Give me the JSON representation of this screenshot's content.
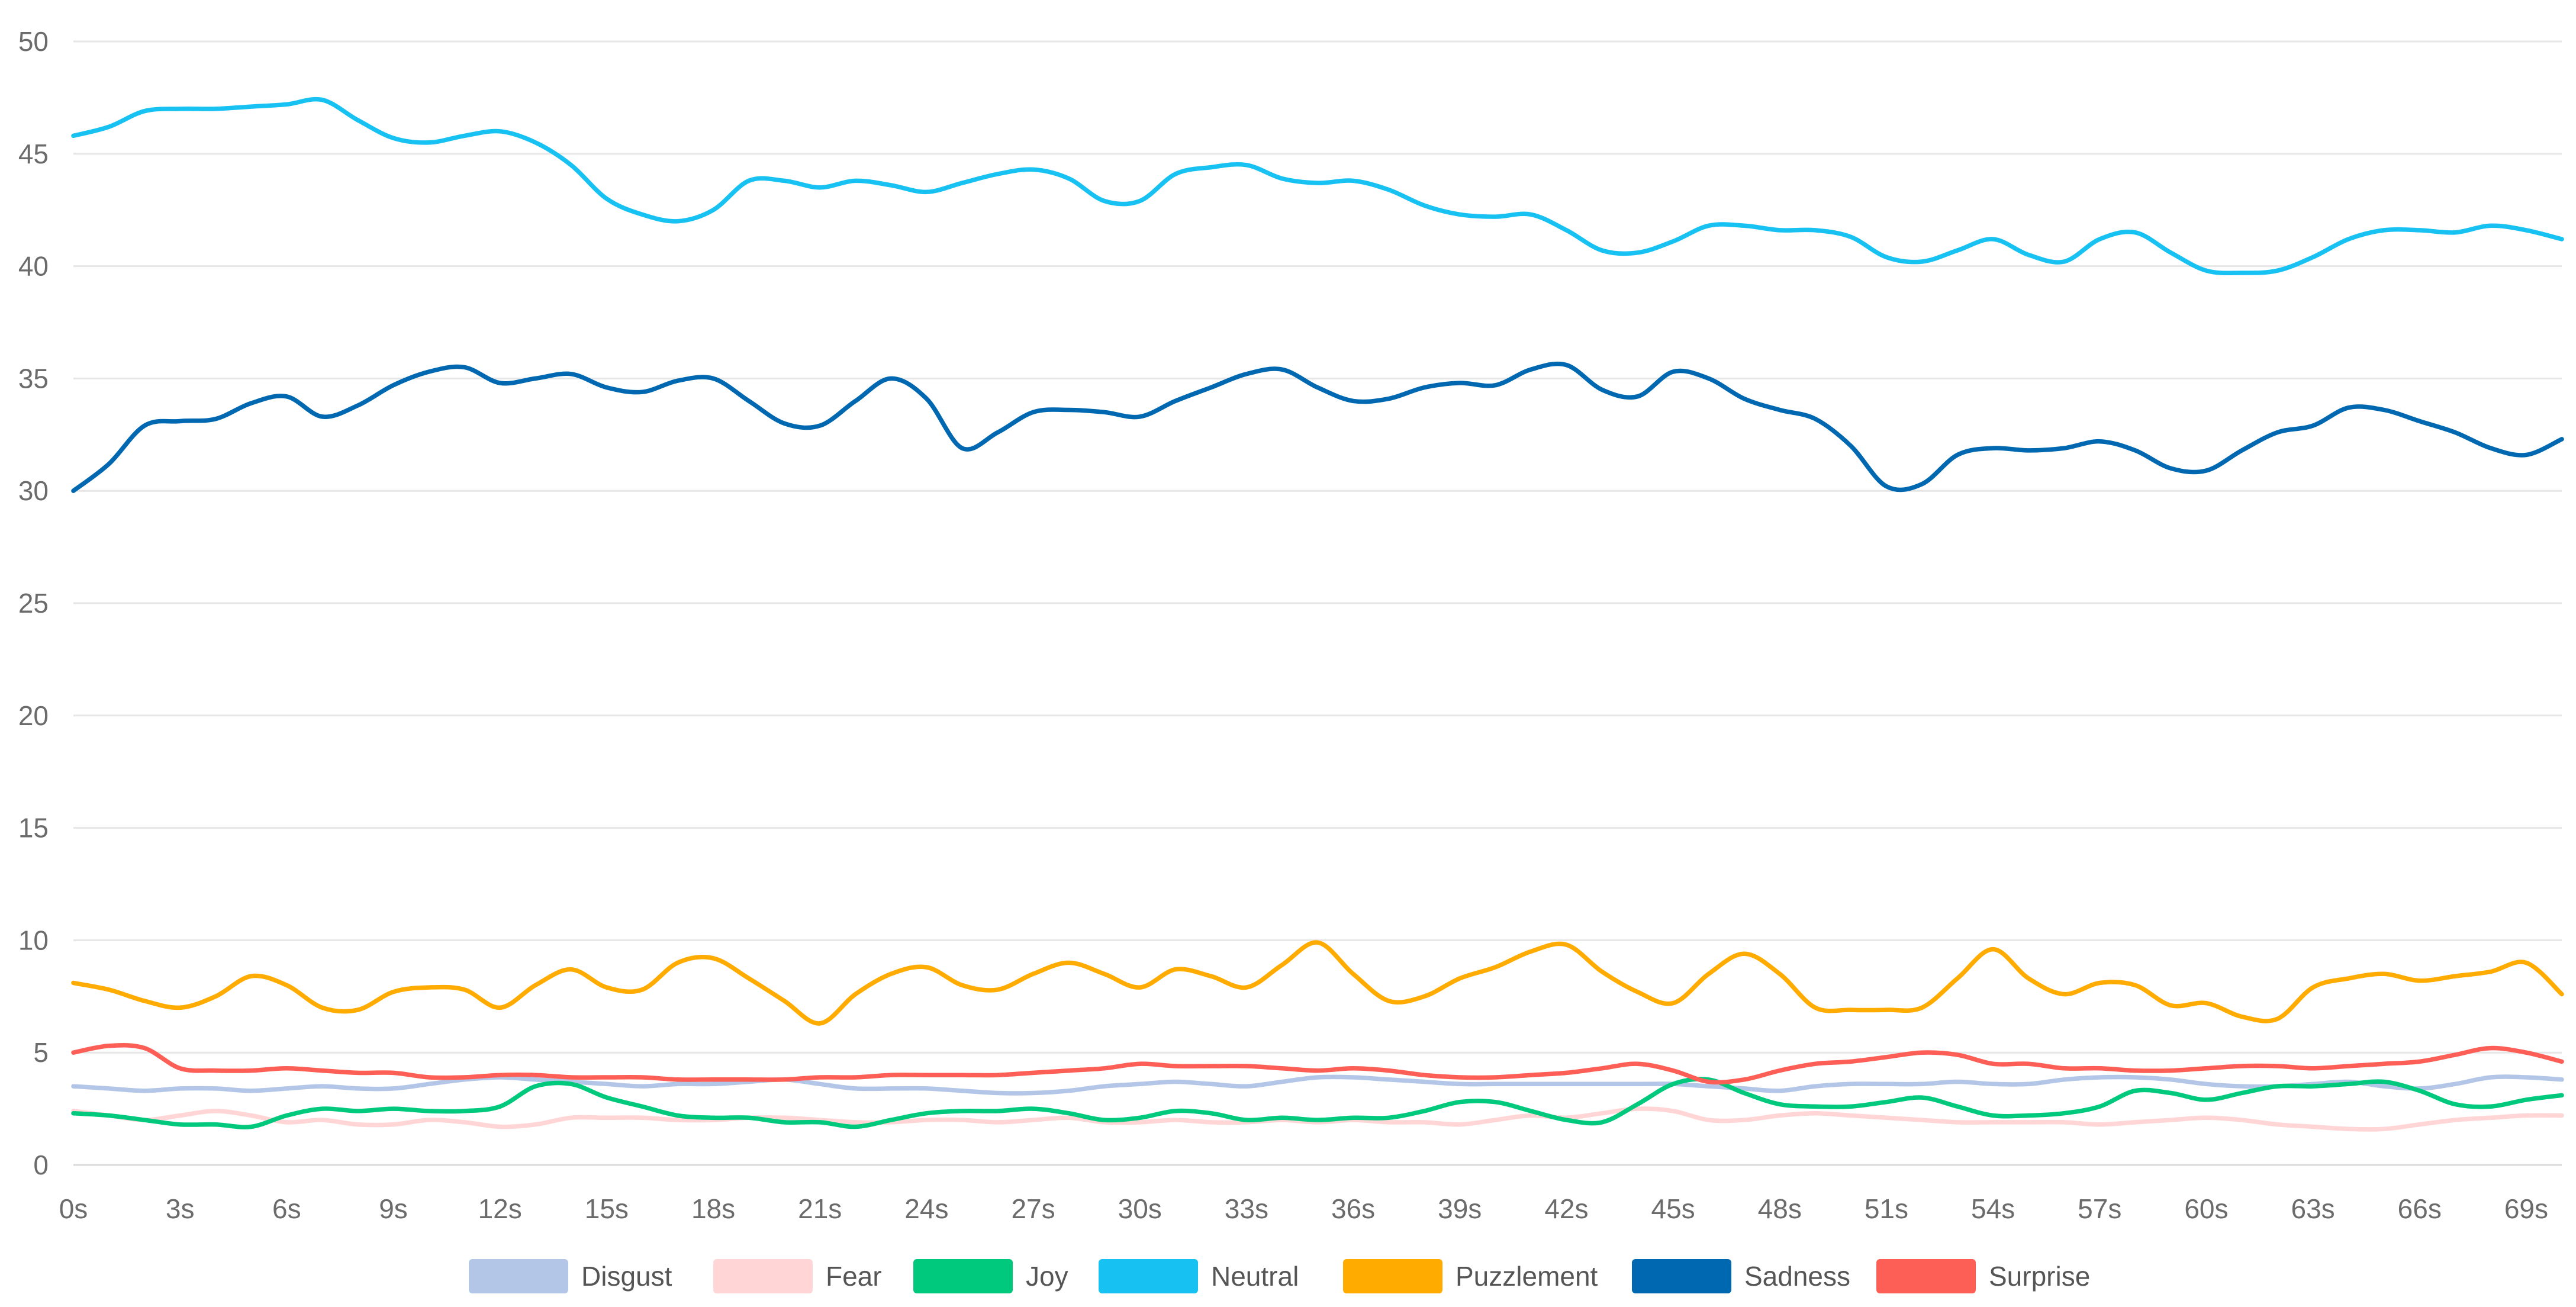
{
  "chart_data": {
    "type": "line",
    "title": "",
    "xlabel": "",
    "ylabel": "",
    "ylim": [
      0,
      50
    ],
    "yticks": [
      0,
      5,
      10,
      15,
      20,
      25,
      30,
      35,
      40,
      45,
      50
    ],
    "ytick_labels": [
      "0",
      "5",
      "10",
      "15",
      "20",
      "25",
      "30",
      "35",
      "40",
      "45",
      "50"
    ],
    "xlim": [
      0,
      70
    ],
    "xticks": [
      0,
      3,
      6,
      9,
      12,
      15,
      18,
      21,
      24,
      27,
      30,
      33,
      36,
      39,
      42,
      45,
      48,
      51,
      54,
      57,
      60,
      63,
      66,
      69
    ],
    "xtick_labels": [
      "0s",
      "3s",
      "6s",
      "9s",
      "12s",
      "15s",
      "18s",
      "21s",
      "24s",
      "27s",
      "30s",
      "33s",
      "36s",
      "39s",
      "42s",
      "45s",
      "48s",
      "51s",
      "54s",
      "57s",
      "60s",
      "63s",
      "66s",
      "69s"
    ],
    "grid": true,
    "legend_position": "bottom-center",
    "x": [
      0,
      1,
      2,
      3,
      4,
      5,
      6,
      7,
      8,
      9,
      10,
      11,
      12,
      13,
      14,
      15,
      16,
      17,
      18,
      19,
      20,
      21,
      22,
      23,
      24,
      25,
      26,
      27,
      28,
      29,
      30,
      31,
      32,
      33,
      34,
      35,
      36,
      37,
      38,
      39,
      40,
      41,
      42,
      43,
      44,
      45,
      46,
      47,
      48,
      49,
      50,
      51,
      52,
      53,
      54,
      55,
      56,
      57,
      58,
      59,
      60,
      61,
      62,
      63,
      64,
      65,
      66,
      67,
      68,
      69,
      70
    ],
    "series": [
      {
        "name": "Disgust",
        "color": "#b3c6e7",
        "values": [
          3.5,
          3.4,
          3.3,
          3.4,
          3.4,
          3.3,
          3.4,
          3.5,
          3.4,
          3.4,
          3.6,
          3.8,
          3.9,
          3.8,
          3.7,
          3.6,
          3.5,
          3.6,
          3.6,
          3.7,
          3.8,
          3.6,
          3.4,
          3.4,
          3.4,
          3.3,
          3.2,
          3.2,
          3.3,
          3.5,
          3.6,
          3.7,
          3.6,
          3.5,
          3.7,
          3.9,
          3.9,
          3.8,
          3.7,
          3.6,
          3.6,
          3.6,
          3.6,
          3.6,
          3.6,
          3.6,
          3.5,
          3.4,
          3.3,
          3.5,
          3.6,
          3.6,
          3.6,
          3.7,
          3.6,
          3.6,
          3.8,
          3.9,
          3.9,
          3.8,
          3.6,
          3.5,
          3.5,
          3.6,
          3.7,
          3.5,
          3.4,
          3.6,
          3.9,
          3.9,
          3.8
        ]
      },
      {
        "name": "Fear",
        "color": "#ffd5d5",
        "values": [
          2.4,
          2.2,
          2.0,
          2.2,
          2.4,
          2.2,
          1.9,
          2.0,
          1.8,
          1.8,
          2.0,
          1.9,
          1.7,
          1.8,
          2.1,
          2.1,
          2.1,
          2.0,
          2.0,
          2.1,
          2.1,
          2.0,
          1.9,
          1.9,
          2.0,
          2.0,
          1.9,
          2.0,
          2.1,
          1.9,
          1.9,
          2.0,
          1.9,
          1.9,
          2.0,
          1.9,
          2.0,
          1.9,
          1.9,
          1.8,
          2.0,
          2.2,
          2.1,
          2.3,
          2.5,
          2.4,
          2.0,
          2.0,
          2.2,
          2.3,
          2.2,
          2.1,
          2.0,
          1.9,
          1.9,
          1.9,
          1.9,
          1.8,
          1.9,
          2.0,
          2.1,
          2.0,
          1.8,
          1.7,
          1.6,
          1.6,
          1.8,
          2.0,
          2.1,
          2.2,
          2.2
        ]
      },
      {
        "name": "Joy",
        "color": "#00c97d",
        "values": [
          2.3,
          2.2,
          2.0,
          1.8,
          1.8,
          1.7,
          2.2,
          2.5,
          2.4,
          2.5,
          2.4,
          2.4,
          2.6,
          3.5,
          3.6,
          3.0,
          2.6,
          2.2,
          2.1,
          2.1,
          1.9,
          1.9,
          1.7,
          2.0,
          2.3,
          2.4,
          2.4,
          2.5,
          2.3,
          2.0,
          2.1,
          2.4,
          2.3,
          2.0,
          2.1,
          2.0,
          2.1,
          2.1,
          2.4,
          2.8,
          2.8,
          2.4,
          2.0,
          1.9,
          2.7,
          3.6,
          3.8,
          3.2,
          2.7,
          2.6,
          2.6,
          2.8,
          3.0,
          2.6,
          2.2,
          2.2,
          2.3,
          2.6,
          3.3,
          3.2,
          2.9,
          3.2,
          3.5,
          3.5,
          3.6,
          3.7,
          3.3,
          2.7,
          2.6,
          2.9,
          3.1
        ]
      },
      {
        "name": "Neutral",
        "color": "#17c2f3",
        "values": [
          45.8,
          46.2,
          46.9,
          47.0,
          47.0,
          47.1,
          47.2,
          47.4,
          46.5,
          45.7,
          45.5,
          45.8,
          46.0,
          45.5,
          44.5,
          43.0,
          42.3,
          42.0,
          42.5,
          43.8,
          43.8,
          43.5,
          43.8,
          43.6,
          43.3,
          43.7,
          44.1,
          44.3,
          43.9,
          42.9,
          42.9,
          44.1,
          44.4,
          44.5,
          43.9,
          43.7,
          43.8,
          43.4,
          42.7,
          42.3,
          42.2,
          42.3,
          41.6,
          40.7,
          40.6,
          41.1,
          41.8,
          41.8,
          41.6,
          41.6,
          41.3,
          40.4,
          40.2,
          40.7,
          41.2,
          40.5,
          40.2,
          41.2,
          41.5,
          40.6,
          39.8,
          39.7,
          39.8,
          40.4,
          41.2,
          41.6,
          41.6,
          41.5,
          41.8,
          41.6,
          41.2
        ]
      },
      {
        "name": "Puzzlement",
        "color": "#ffab00",
        "values": [
          8.1,
          7.8,
          7.3,
          7.0,
          7.5,
          8.4,
          8.0,
          7.0,
          6.9,
          7.7,
          7.9,
          7.8,
          7.0,
          8.0,
          8.7,
          7.9,
          7.8,
          9.0,
          9.2,
          8.3,
          7.3,
          6.3,
          7.6,
          8.5,
          8.8,
          8.0,
          7.8,
          8.5,
          9.0,
          8.5,
          7.9,
          8.7,
          8.4,
          7.9,
          8.9,
          9.9,
          8.5,
          7.3,
          7.5,
          8.3,
          8.8,
          9.5,
          9.8,
          8.6,
          7.7,
          7.2,
          8.5,
          9.4,
          8.5,
          7.0,
          6.9,
          6.9,
          7.0,
          8.3,
          9.6,
          8.3,
          7.6,
          8.1,
          8.0,
          7.1,
          7.2,
          6.6,
          6.5,
          7.9,
          8.3,
          8.5,
          8.2,
          8.4,
          8.6,
          9.0,
          7.6
        ]
      },
      {
        "name": "Sadness",
        "color": "#0068b0",
        "values": [
          30.0,
          31.2,
          32.9,
          33.1,
          33.2,
          33.9,
          34.2,
          33.3,
          33.8,
          34.7,
          35.3,
          35.5,
          34.8,
          35.0,
          35.2,
          34.6,
          34.4,
          34.9,
          35.0,
          34.0,
          33.0,
          32.9,
          34.0,
          35.0,
          34.1,
          31.9,
          32.6,
          33.5,
          33.6,
          33.5,
          33.3,
          34.0,
          34.6,
          35.2,
          35.4,
          34.6,
          34.0,
          34.1,
          34.6,
          34.8,
          34.7,
          35.4,
          35.6,
          34.5,
          34.2,
          35.3,
          35.0,
          34.1,
          33.6,
          33.2,
          32.0,
          30.2,
          30.3,
          31.6,
          31.9,
          31.8,
          31.9,
          32.2,
          31.8,
          31.0,
          30.9,
          31.8,
          32.6,
          32.9,
          33.7,
          33.6,
          33.1,
          32.6,
          31.9,
          31.6,
          32.3
        ]
      },
      {
        "name": "Surprise",
        "color": "#fd5e55",
        "values": [
          5.0,
          5.3,
          5.2,
          4.3,
          4.2,
          4.2,
          4.3,
          4.2,
          4.1,
          4.1,
          3.9,
          3.9,
          4.0,
          4.0,
          3.9,
          3.9,
          3.9,
          3.8,
          3.8,
          3.8,
          3.8,
          3.9,
          3.9,
          4.0,
          4.0,
          4.0,
          4.0,
          4.1,
          4.2,
          4.3,
          4.5,
          4.4,
          4.4,
          4.4,
          4.3,
          4.2,
          4.3,
          4.2,
          4.0,
          3.9,
          3.9,
          4.0,
          4.1,
          4.3,
          4.5,
          4.2,
          3.7,
          3.8,
          4.2,
          4.5,
          4.6,
          4.8,
          5.0,
          4.9,
          4.5,
          4.5,
          4.3,
          4.3,
          4.2,
          4.2,
          4.3,
          4.4,
          4.4,
          4.3,
          4.4,
          4.5,
          4.6,
          4.9,
          5.2,
          5.0,
          4.6
        ]
      }
    ]
  }
}
